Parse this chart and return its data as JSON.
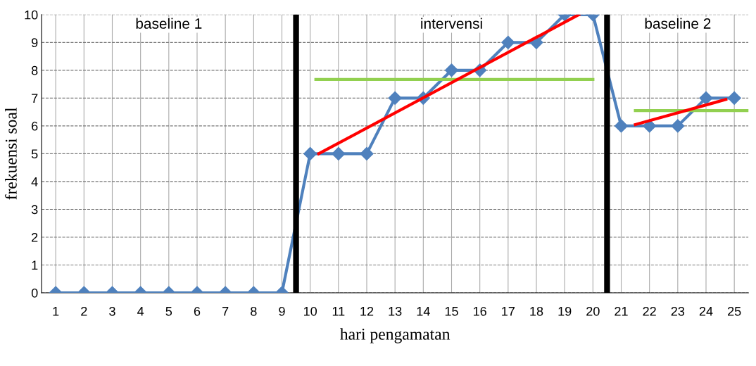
{
  "chart_data": {
    "type": "line",
    "xlabel": "hari pengamatan",
    "ylabel": "frekuensi soal",
    "x": [
      1,
      2,
      3,
      4,
      5,
      6,
      7,
      8,
      9,
      10,
      11,
      12,
      13,
      14,
      15,
      16,
      17,
      18,
      19,
      20,
      21,
      22,
      23,
      24,
      25
    ],
    "series": [
      {
        "color": "#4f81bd",
        "marker": "diamond",
        "values": [
          0,
          0,
          0,
          0,
          0,
          0,
          0,
          0,
          0,
          5,
          5,
          5,
          7,
          7,
          8,
          8,
          9,
          9,
          10,
          10,
          6,
          6,
          6,
          7,
          7
        ]
      },
      {
        "color": "#92d050",
        "marker": "none",
        "x": [
          10.2,
          20
        ],
        "values": [
          7.67,
          7.67
        ]
      },
      {
        "color": "#92d050",
        "marker": "none",
        "x": [
          21.5,
          25.5
        ],
        "values": [
          6.55,
          6.55
        ]
      },
      {
        "color": "#ff0000",
        "marker": "none",
        "x": [
          10.3,
          19.5
        ],
        "values": [
          5.0,
          10.0
        ]
      },
      {
        "color": "#ff0000",
        "marker": "none",
        "x": [
          21.5,
          24.7
        ],
        "values": [
          6.05,
          6.95
        ]
      }
    ],
    "xlim": [
      0.5,
      25.5
    ],
    "xticks": [
      1,
      2,
      3,
      4,
      5,
      6,
      7,
      8,
      9,
      10,
      11,
      12,
      13,
      14,
      15,
      16,
      17,
      18,
      19,
      20,
      21,
      22,
      23,
      24,
      25
    ],
    "ylim": [
      0,
      10
    ],
    "yticks": [
      0,
      1,
      2,
      3,
      4,
      5,
      6,
      7,
      8,
      9,
      10
    ],
    "ref_lines": [
      {
        "axis": "x",
        "value": 9.5,
        "color": "#000000"
      },
      {
        "axis": "x",
        "value": 20.5,
        "color": "#000000"
      }
    ],
    "annotations": [
      "baseline 1",
      "intervensi",
      "baseline 2"
    ],
    "grid": true,
    "legend": false
  }
}
